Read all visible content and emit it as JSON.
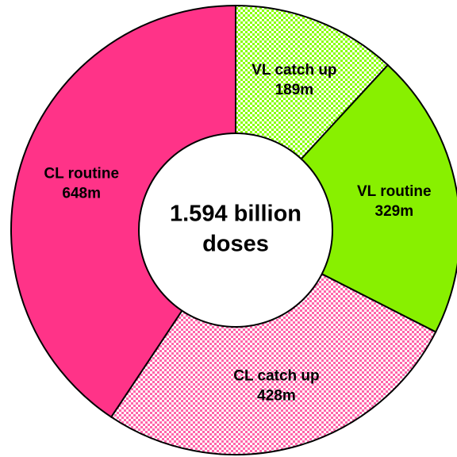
{
  "chart_data": {
    "type": "donut",
    "categories": [
      "VL catch up",
      "VL routine",
      "CL catch up",
      "CL routine"
    ],
    "values": [
      189,
      329,
      428,
      648
    ],
    "value_labels": [
      "189m",
      "329m",
      "428m",
      "648m"
    ],
    "colors": [
      "#88ff00",
      "#88f000",
      "#ff66aa",
      "#ff3388"
    ],
    "checkered": [
      true,
      false,
      true,
      false
    ],
    "center_label": [
      "1.594 billion",
      "doses"
    ]
  }
}
